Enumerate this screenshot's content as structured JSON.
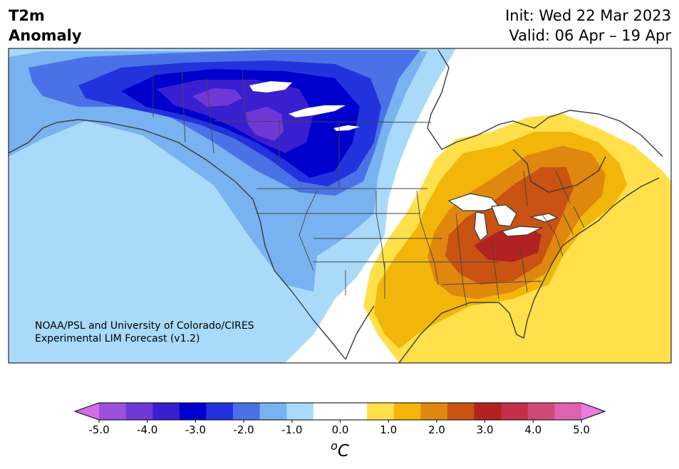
{
  "title": {
    "variable": "T2m\nAnomaly",
    "init": "Init: Wed 22 Mar 2023",
    "valid": "Valid: 06 Apr – 19 Apr"
  },
  "credit": {
    "line1": "NOAA/PSL and University of Colorado/CIRES",
    "line2": "Experimental LIM Forecast (v1.2)"
  },
  "colorbar": {
    "unit": "oC",
    "ticks": [
      "-5.0",
      "-4.0",
      "-3.0",
      "-2.0",
      "-1.0",
      "0.0",
      "1.0",
      "2.0",
      "3.0",
      "4.0",
      "5.0"
    ],
    "colors": [
      "#d16ee6",
      "#9c50db",
      "#6f38d6",
      "#3a1fd0",
      "#0000cc",
      "#2233dd",
      "#4a72e6",
      "#78b2f0",
      "#aadaf9",
      "#ffffff",
      "#ffffff",
      "#ffe04a",
      "#f2b60a",
      "#e0870e",
      "#c85313",
      "#b22222",
      "#c2304a",
      "#d04a78",
      "#dd63b0",
      "#e87ae0"
    ]
  }
}
